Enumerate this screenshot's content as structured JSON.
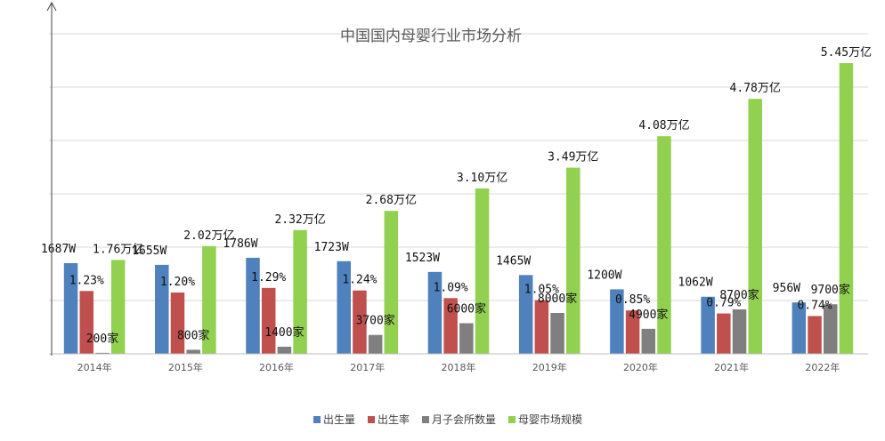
{
  "chart_data": {
    "type": "bar",
    "title": "中国国内母婴行业市场分析",
    "categories": [
      "2014年",
      "2015年",
      "2016年",
      "2017年",
      "2018年",
      "2019年",
      "2020年",
      "2021年",
      "2022年"
    ],
    "series": [
      {
        "name": "出生量",
        "color": "#4f81bd",
        "values": [
          1687,
          1655,
          1786,
          1723,
          1523,
          1465,
          1200,
          1062,
          956
        ],
        "labels": [
          "1687W",
          "1655W",
          "1786W",
          "1723W",
          "1523W",
          "1465W",
          "1200W",
          "1062W",
          "956W"
        ]
      },
      {
        "name": "出生率",
        "color": "#c0504d",
        "values": [
          1.23,
          1.2,
          1.29,
          1.24,
          1.09,
          1.05,
          0.85,
          0.79,
          0.74
        ],
        "labels": [
          "1.23%",
          "1.20%",
          "1.29%",
          "1.24%",
          "1.09%",
          "1.05%",
          "0.85%",
          "0.79%",
          "0.74%"
        ]
      },
      {
        "name": "月子会所数量",
        "color": "#7f7f7f",
        "values": [
          200,
          800,
          1400,
          3700,
          6000,
          8000,
          4900,
          8700,
          9700
        ],
        "labels": [
          "200家",
          "800家",
          "1400家",
          "3700家",
          "6000家",
          "8000家",
          "4900家",
          "8700家",
          "9700家"
        ]
      },
      {
        "name": "母婴市场规模",
        "color": "#92d050",
        "values": [
          1.76,
          2.02,
          2.32,
          2.68,
          3.1,
          3.49,
          4.08,
          4.78,
          5.45
        ],
        "labels": [
          "1.76万亿",
          "2.02万亿",
          "2.32万亿",
          "2.68万亿",
          "3.10万亿",
          "3.49万亿",
          "4.08万亿",
          "4.78万亿",
          "5.45万亿"
        ]
      }
    ],
    "grid": true,
    "legend_position": "bottom"
  }
}
